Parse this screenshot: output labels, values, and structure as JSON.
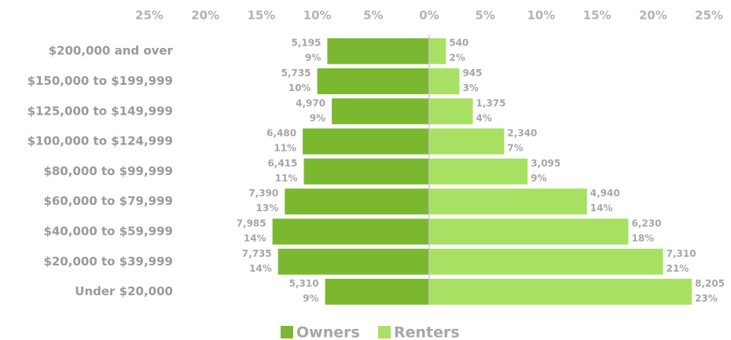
{
  "chart_data": {
    "type": "butterfly",
    "categories": [
      "$200,000 and over",
      "$150,000 to $199,999",
      "$125,000 to $149,999",
      "$100,000 to $124,999",
      "$80,000 to $99,999",
      "$60,000 to $79,999",
      "$40,000 to $59,999",
      "$20,000 to $39,999",
      "Under $20,000"
    ],
    "series": [
      {
        "name": "Owners",
        "color": "#7cb82f",
        "side": "left",
        "values": [
          9.1,
          10.0,
          8.7,
          11.3,
          11.2,
          12.9,
          14.0,
          13.5,
          9.3
        ],
        "value_labels": [
          "9%",
          "10%",
          "9%",
          "11%",
          "11%",
          "13%",
          "14%",
          "14%",
          "9%"
        ],
        "count_labels": [
          "5,195",
          "5,735",
          "4,970",
          "6,480",
          "6,415",
          "7,390",
          "7,985",
          "7,735",
          "5,310"
        ]
      },
      {
        "name": "Renters",
        "color": "#a8e063",
        "side": "right",
        "values": [
          1.5,
          2.7,
          3.9,
          6.7,
          8.8,
          14.1,
          17.8,
          20.9,
          23.46
        ],
        "value_labels": [
          "2%",
          "3%",
          "4%",
          "7%",
          "9%",
          "14%",
          "18%",
          "21%",
          "23%"
        ],
        "count_labels": [
          "540",
          "945",
          "1,375",
          "2,340",
          "3,095",
          "4,940",
          "6,230",
          "7,310",
          "8,205"
        ]
      }
    ],
    "xlim": [
      -25,
      25
    ],
    "xticks": [
      {
        "value": -25,
        "label": "25%"
      },
      {
        "value": -20,
        "label": "20%"
      },
      {
        "value": -15,
        "label": "15%"
      },
      {
        "value": -10,
        "label": "10%"
      },
      {
        "value": -5,
        "label": "5%"
      },
      {
        "value": 0,
        "label": "0%"
      },
      {
        "value": 5,
        "label": "5%"
      },
      {
        "value": 10,
        "label": "10%"
      },
      {
        "value": 15,
        "label": "15%"
      },
      {
        "value": 20,
        "label": "20%"
      },
      {
        "value": 25,
        "label": "25%"
      }
    ],
    "legend": "bottom"
  }
}
